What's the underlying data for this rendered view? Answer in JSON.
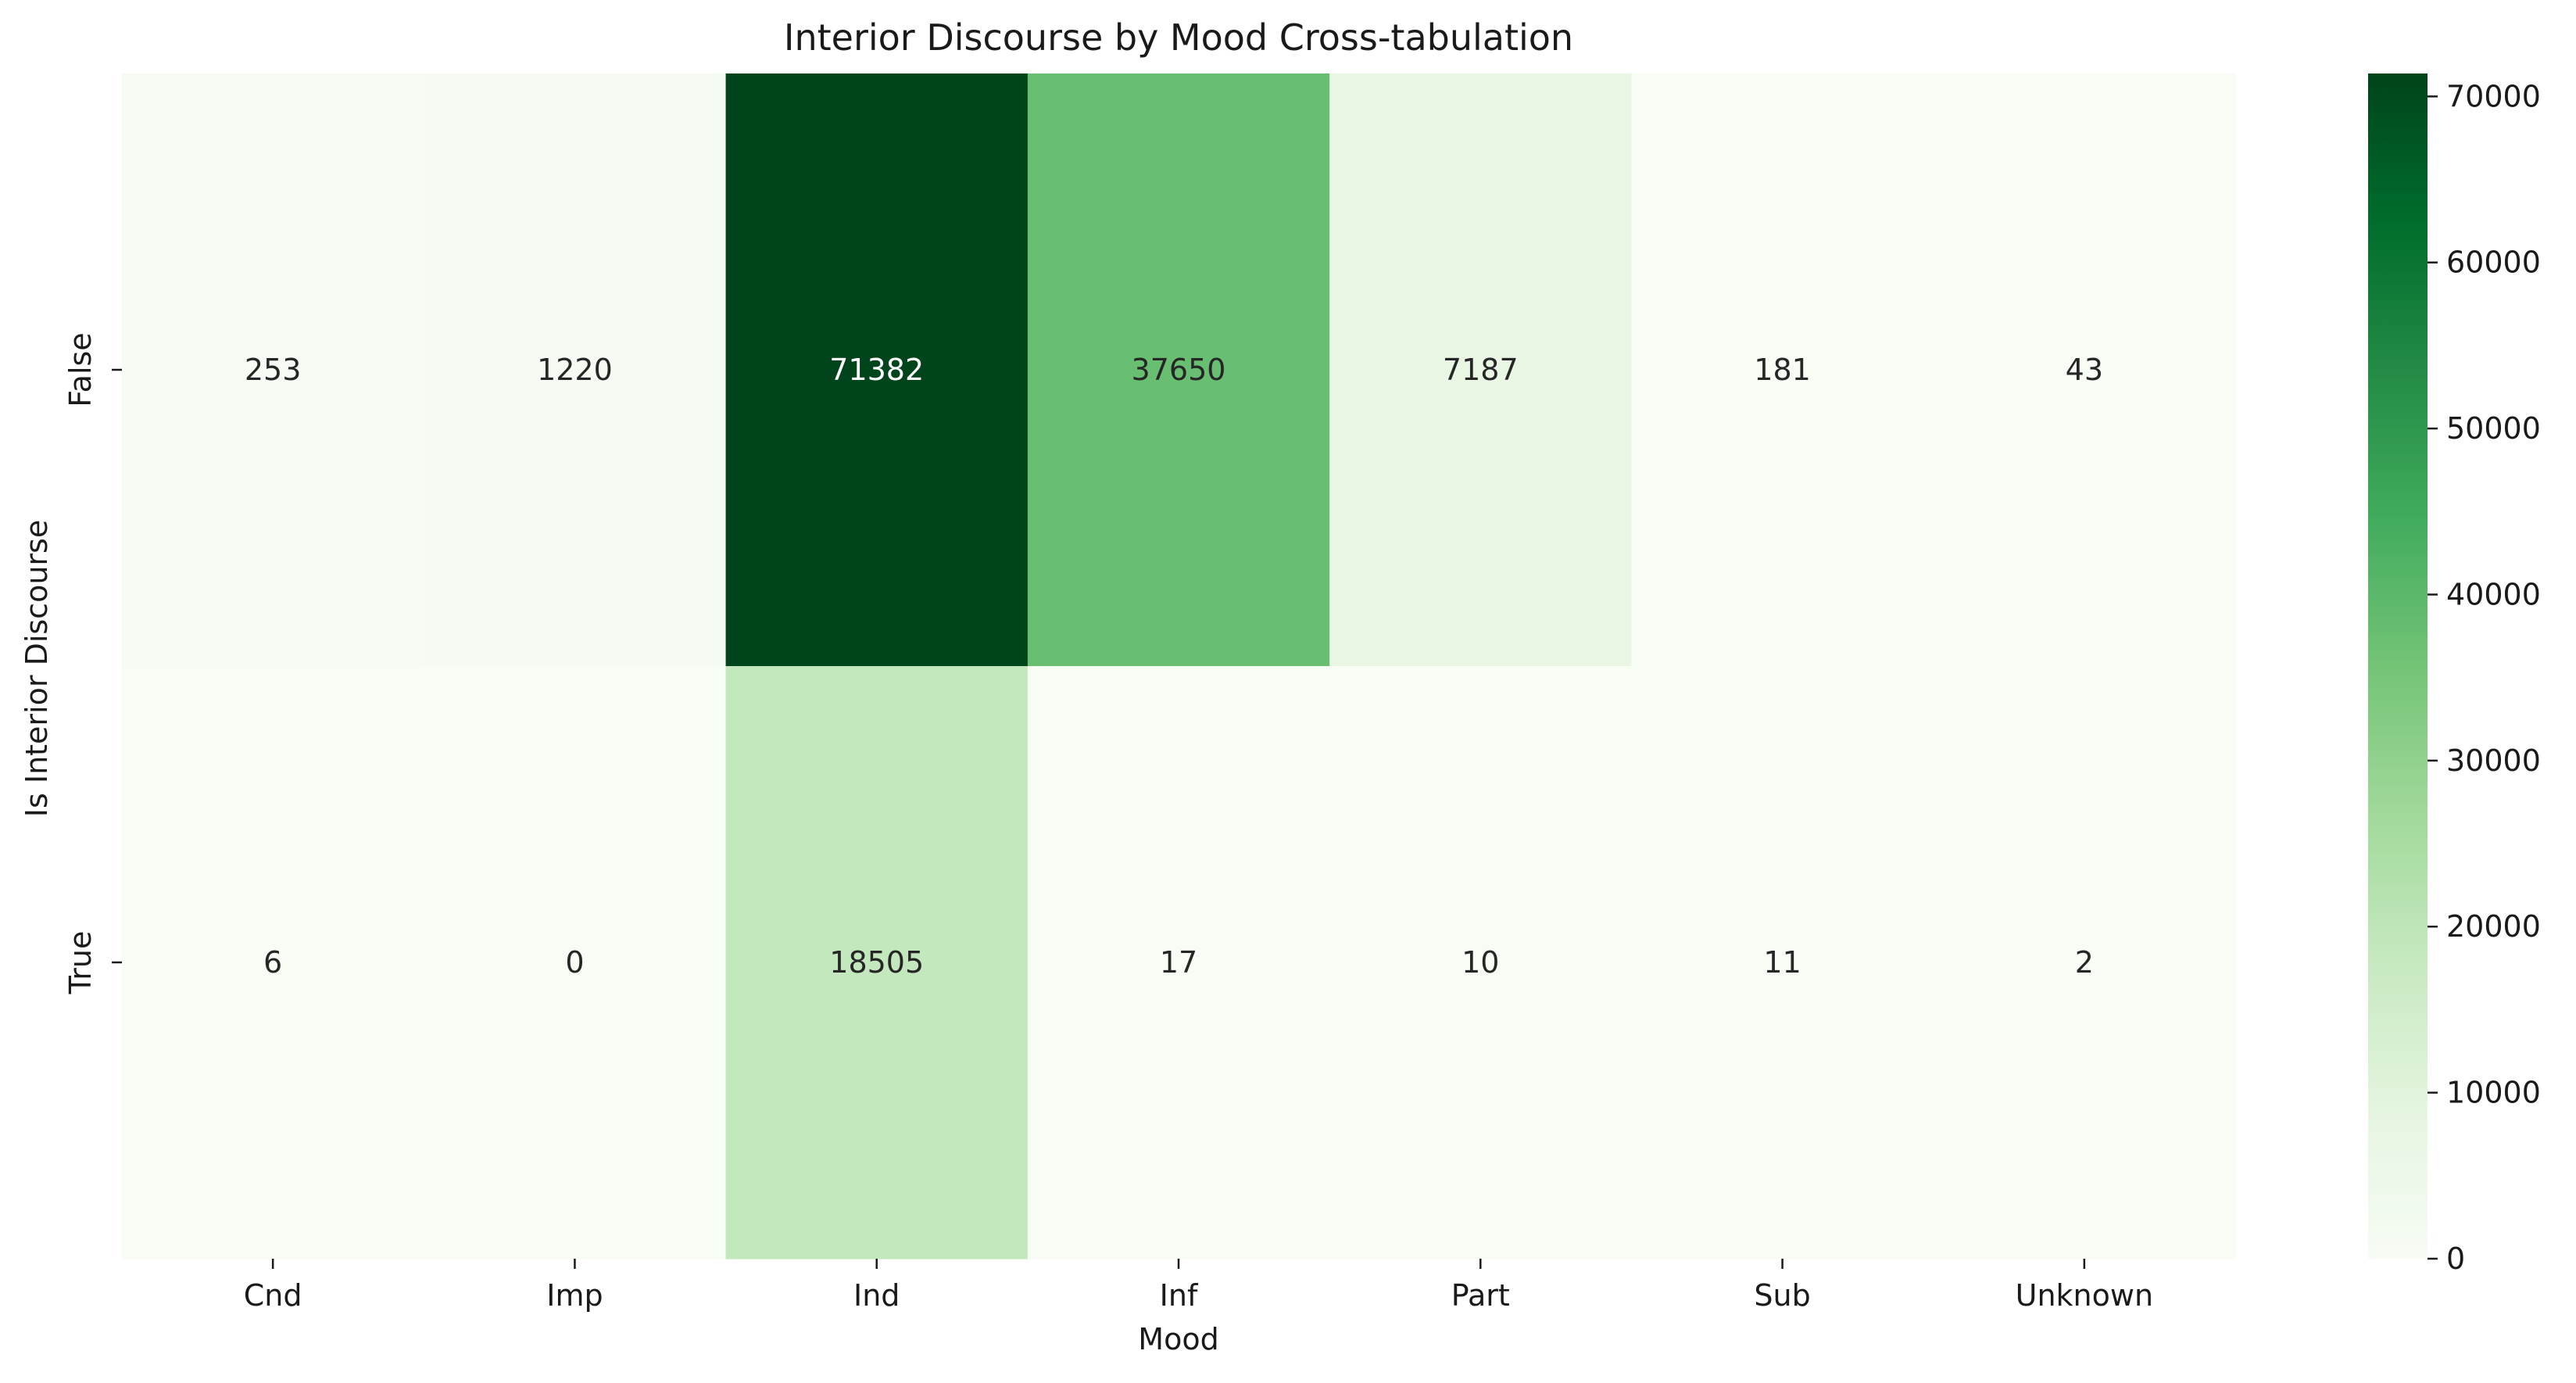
{
  "chart_data": {
    "type": "heatmap",
    "title": "Interior Discourse by Mood Cross-tabulation",
    "xlabel": "Mood",
    "ylabel": "Is Interior Discourse",
    "x_categories": [
      "Cnd",
      "Imp",
      "Ind",
      "Inf",
      "Part",
      "Sub",
      "Unknown"
    ],
    "y_categories": [
      "False",
      "True"
    ],
    "values": [
      [
        253,
        1220,
        71382,
        37650,
        7187,
        181,
        43
      ],
      [
        6,
        0,
        18505,
        17,
        10,
        11,
        2
      ]
    ],
    "colormap": "Greens",
    "color_range": [
      0,
      71382
    ],
    "colorbar_ticks": [
      0,
      10000,
      20000,
      30000,
      40000,
      50000,
      60000,
      70000
    ],
    "colorbar_tick_labels": [
      "0",
      "10000",
      "20000",
      "30000",
      "40000",
      "50000",
      "60000",
      "70000"
    ],
    "colorbar_placement": "right",
    "grid": false
  }
}
